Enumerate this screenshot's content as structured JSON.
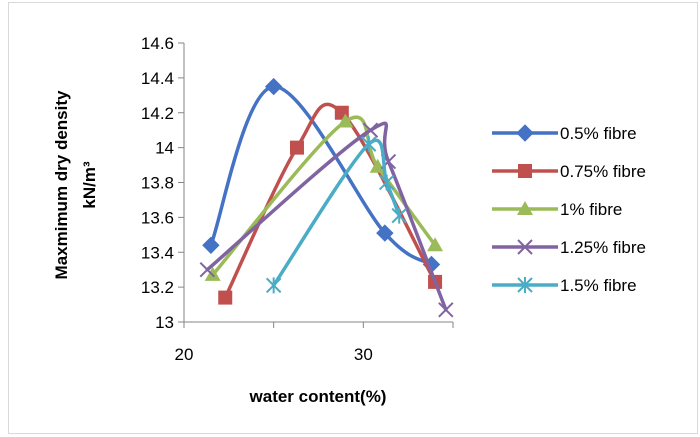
{
  "chart_data": {
    "type": "scatter",
    "title": "",
    "xlabel": "water content(%)",
    "ylabel_lines": [
      "Maxmimum dry density",
      "kN/m³"
    ],
    "xlim": [
      20,
      35
    ],
    "ylim": [
      13,
      14.6
    ],
    "x_ticks": [
      20,
      30
    ],
    "y_ticks": [
      13,
      13.2,
      13.4,
      13.6,
      13.8,
      14,
      14.2,
      14.4,
      14.6
    ],
    "y_tick_labels": [
      "13",
      "13.2",
      "13.4",
      "13.6",
      "13.8",
      "14",
      "14.2",
      "14.4",
      "14.6"
    ],
    "grid": false,
    "smooth_lines": true,
    "legend_position": "right",
    "series": [
      {
        "name": "0.5% fibre",
        "color": "#4472C4",
        "marker": "diamond",
        "x": [
          21.5,
          25.0,
          31.2,
          33.8
        ],
        "y": [
          13.44,
          14.35,
          13.51,
          13.33
        ]
      },
      {
        "name": "0.75% fibre",
        "color": "#C0504D",
        "marker": "square",
        "x": [
          22.3,
          26.3,
          28.8,
          34.0
        ],
        "y": [
          13.14,
          14.0,
          14.2,
          13.23
        ]
      },
      {
        "name": "1% fibre",
        "color": "#9BBB59",
        "marker": "triangle",
        "x": [
          21.6,
          29.0,
          30.8,
          34.0
        ],
        "y": [
          13.27,
          14.15,
          13.89,
          13.44
        ]
      },
      {
        "name": "1.25% fibre",
        "color": "#8064A2",
        "marker": "x",
        "x": [
          21.3,
          30.4,
          31.4,
          34.6
        ],
        "y": [
          13.3,
          14.1,
          13.92,
          13.07
        ]
      },
      {
        "name": "1.5% fibre",
        "color": "#4BACC6",
        "marker": "asterisk",
        "x": [
          25.0,
          30.3,
          31.3,
          32.0
        ],
        "y": [
          13.21,
          14.02,
          13.8,
          13.61
        ]
      }
    ]
  }
}
